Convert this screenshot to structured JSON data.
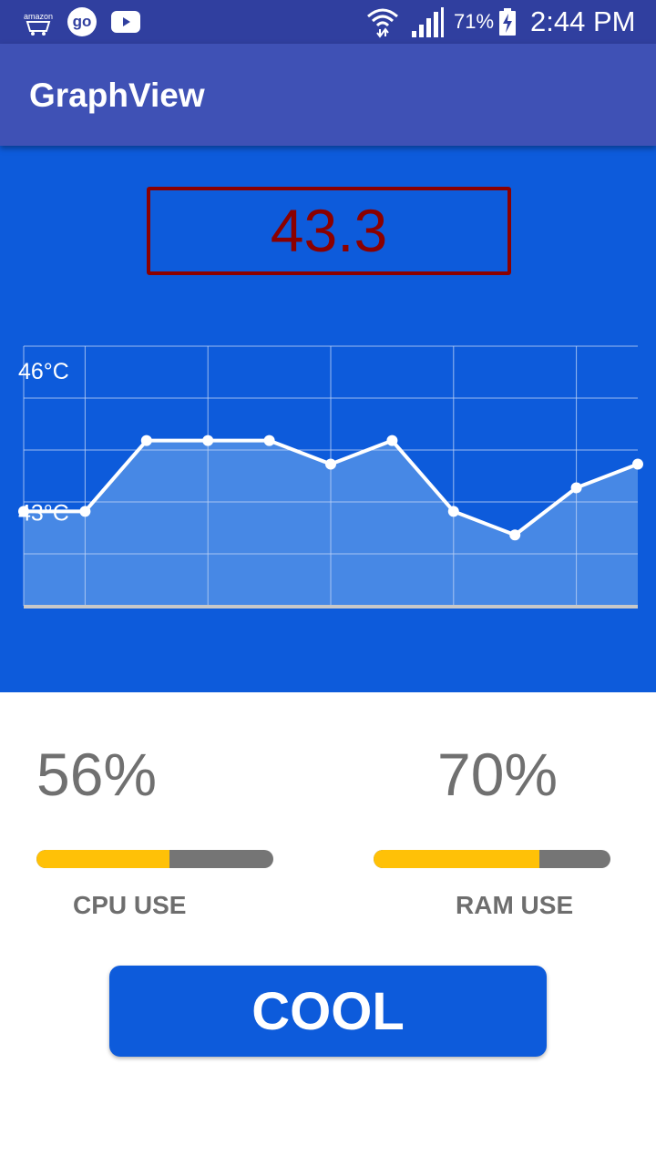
{
  "status_bar": {
    "amazon_label": "amazon",
    "go_label": "go",
    "battery_percent": "71%",
    "time": "2:44 PM",
    "icons": [
      "amazon-icon",
      "go-icon",
      "youtube-icon",
      "wifi-icon",
      "signal-icon",
      "battery-charging-icon"
    ]
  },
  "app_bar": {
    "title": "GraphView"
  },
  "temperature": {
    "value": "43.3"
  },
  "graph": {
    "y_labels": [
      "46°C",
      "43°C"
    ],
    "colors": {
      "line": "#FFFFFF",
      "fill": "#4E8DE6",
      "background": "#0D5BDB",
      "grid": "#BFD3F5"
    }
  },
  "chart_data": {
    "type": "area",
    "x": [
      0,
      1,
      2,
      3,
      4,
      5,
      6,
      7,
      8,
      9,
      10
    ],
    "values": [
      43.0,
      43.0,
      44.5,
      44.5,
      44.5,
      44.0,
      44.5,
      43.0,
      42.5,
      43.5,
      44.0
    ],
    "ylim": [
      41,
      46.5
    ],
    "y_ticks": [
      46,
      43
    ],
    "grid": true
  },
  "stats": {
    "cpu": {
      "value": "56%",
      "fraction": 0.56,
      "label": "CPU USE"
    },
    "ram": {
      "value": "70%",
      "fraction": 0.7,
      "label": "RAM USE"
    },
    "colors": {
      "fill": "#FFC107",
      "track": "#757575"
    }
  },
  "actions": {
    "cool_label": "COOL"
  }
}
